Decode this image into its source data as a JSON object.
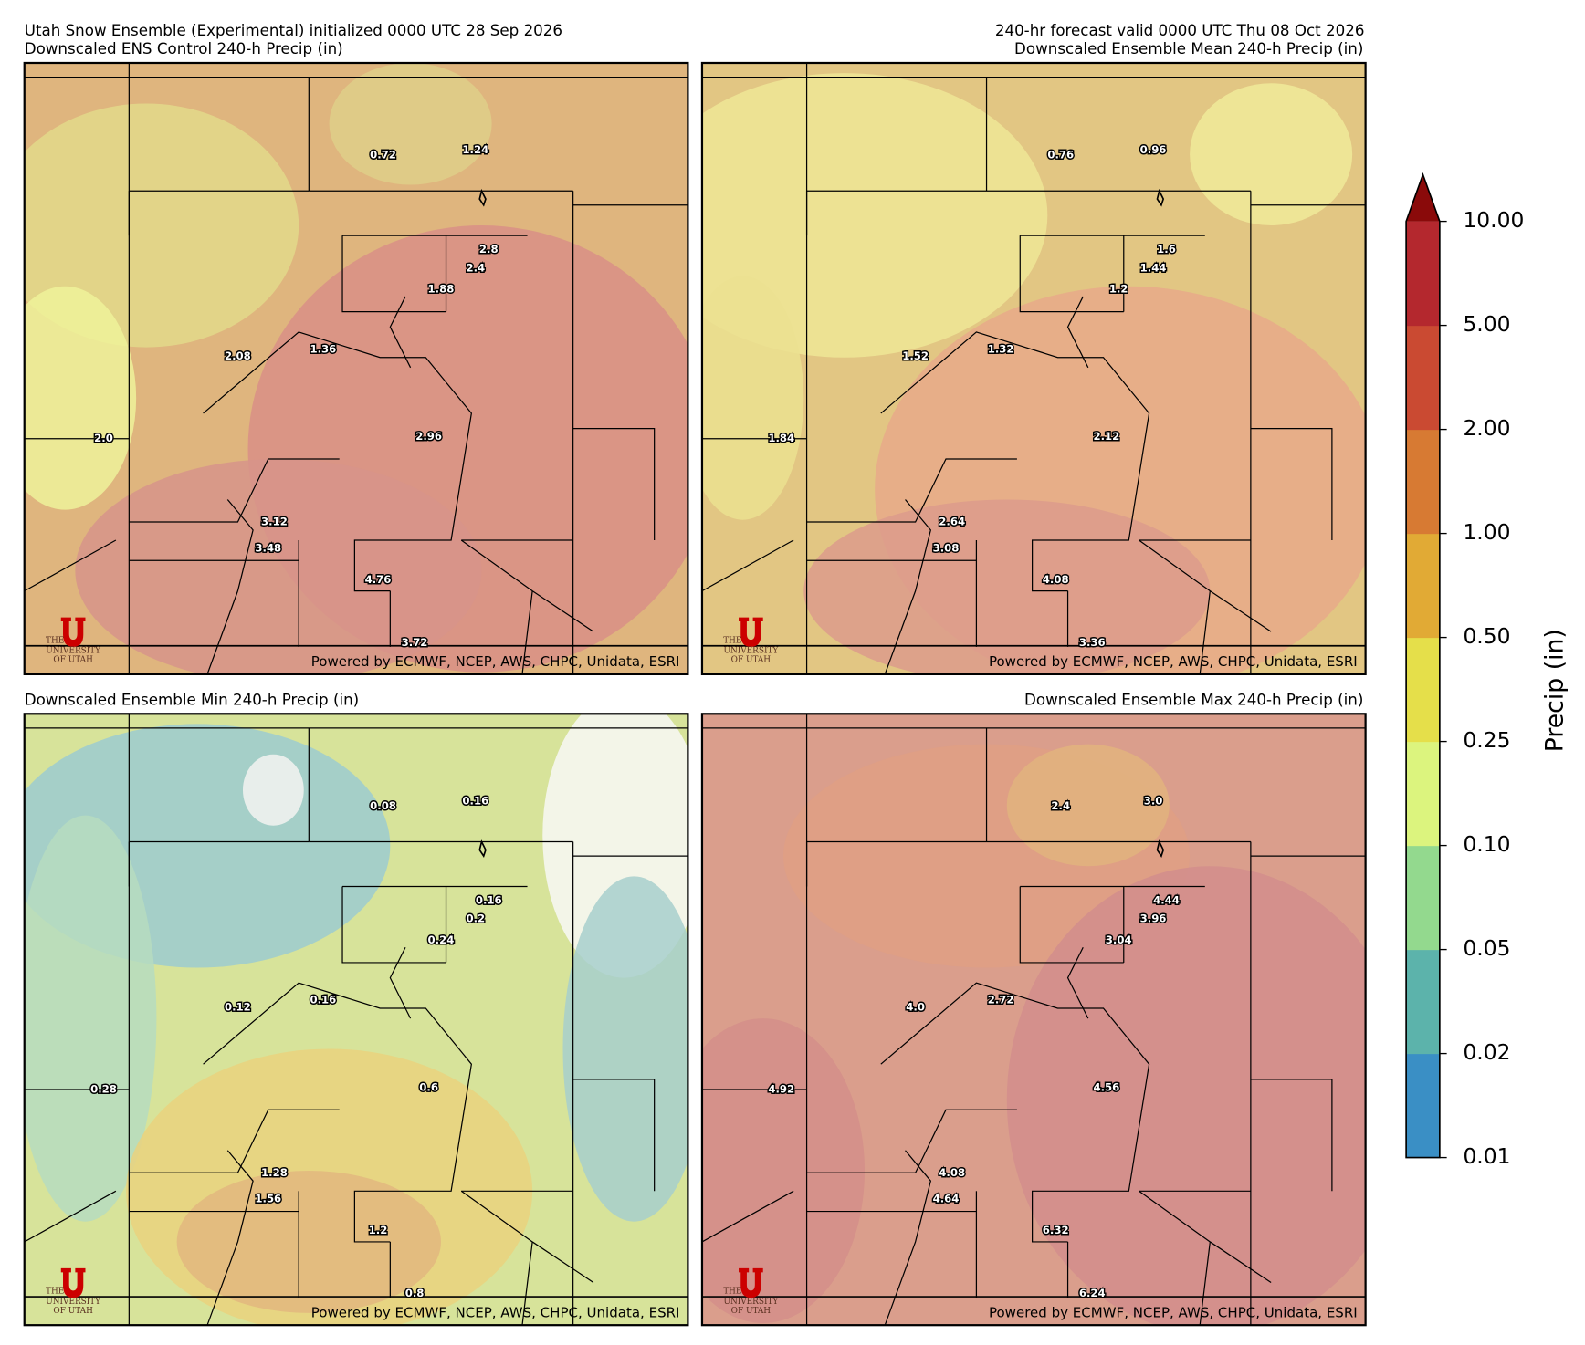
{
  "header": {
    "left": "Utah Snow Ensemble (Experimental) initialized 0000 UTC 28 Sep 2026",
    "right": "240-hr forecast valid 0000 UTC Thu 08 Oct 2026"
  },
  "panels": [
    {
      "title": "Downscaled ENS Control 240-h Precip (in)",
      "labels": [
        "0.72",
        "1.24",
        "2.8",
        "2.4",
        "1.88",
        "2.08",
        "1.36",
        "2.0",
        "2.96",
        "3.12",
        "3.48",
        "4.76",
        "3.72"
      ]
    },
    {
      "title": "Downscaled Ensemble Mean 240-h Precip (in)",
      "labels": [
        "0.76",
        "0.96",
        "1.6",
        "1.44",
        "1.2",
        "1.52",
        "1.32",
        "1.84",
        "2.12",
        "2.64",
        "3.08",
        "4.08",
        "3.36"
      ]
    },
    {
      "title": "Downscaled Ensemble Min 240-h Precip (in)",
      "labels": [
        "0.08",
        "0.16",
        "0.16",
        "0.2",
        "0.24",
        "0.12",
        "0.16",
        "0.28",
        "0.6",
        "1.28",
        "1.56",
        "1.2",
        "0.8"
      ]
    },
    {
      "title": "Downscaled Ensemble Max 240-h Precip (in)",
      "labels": [
        "2.4",
        "3.0",
        "4.44",
        "3.96",
        "3.04",
        "4.0",
        "2.72",
        "4.92",
        "4.56",
        "4.08",
        "4.64",
        "6.32",
        "6.24"
      ]
    }
  ],
  "credit": "Powered by ECMWF, NCEP, AWS, CHPC, Unidata, ESRI",
  "logo": {
    "the": "THE",
    "name": "UNIVERSITY",
    "place": "OF UTAH"
  },
  "colorbar": {
    "label": "Precip (in)",
    "ticks": [
      "0.01",
      "0.02",
      "0.05",
      "0.10",
      "0.25",
      "0.50",
      "1.00",
      "2.00",
      "5.00",
      "10.00"
    ],
    "colors": [
      "#3a8fc5",
      "#5cb3ab",
      "#93d98e",
      "#dcf47e",
      "#e5df4a",
      "#e1aa35",
      "#d77a33",
      "#ca4a32",
      "#b4282e"
    ],
    "extend_color": "#8a0a0a"
  }
}
